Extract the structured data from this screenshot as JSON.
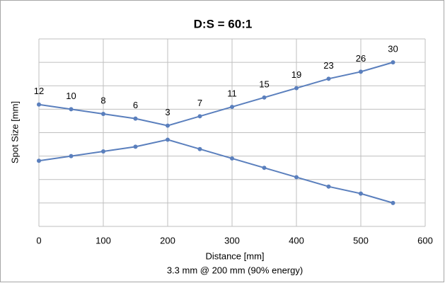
{
  "chart_data": {
    "type": "line",
    "title": "D:S = 60:1",
    "xlabel": "Distance [mm]",
    "ylabel": "Spot Size [mm]",
    "subtitle": "3.3 mm @ 200 mm (90% energy)",
    "x": [
      0,
      50,
      100,
      150,
      200,
      250,
      300,
      350,
      400,
      450,
      500,
      550
    ],
    "series": [
      {
        "color": "#5a7fbd",
        "values": [
          6,
          5,
          4,
          3,
          1.5,
          3.5,
          5.5,
          7.5,
          9.5,
          11.5,
          13,
          15
        ],
        "data_labels": [
          12,
          10,
          8,
          6,
          3,
          7,
          11,
          15,
          19,
          23,
          26,
          30
        ]
      },
      {
        "color": "#5a7fbd",
        "values": [
          -6,
          -5,
          -4,
          -3,
          -1.5,
          -3.5,
          -5.5,
          -7.5,
          -9.5,
          -11.5,
          -13,
          -15
        ]
      }
    ],
    "xlim": [
      0,
      600
    ],
    "xticks": [
      0,
      100,
      200,
      300,
      400,
      500,
      600
    ],
    "ylim": [
      -20,
      20
    ],
    "yticks": [
      -20,
      -15,
      -10,
      -5,
      0,
      5,
      10,
      15,
      20
    ],
    "show_ytick_labels": false,
    "grid": true
  }
}
